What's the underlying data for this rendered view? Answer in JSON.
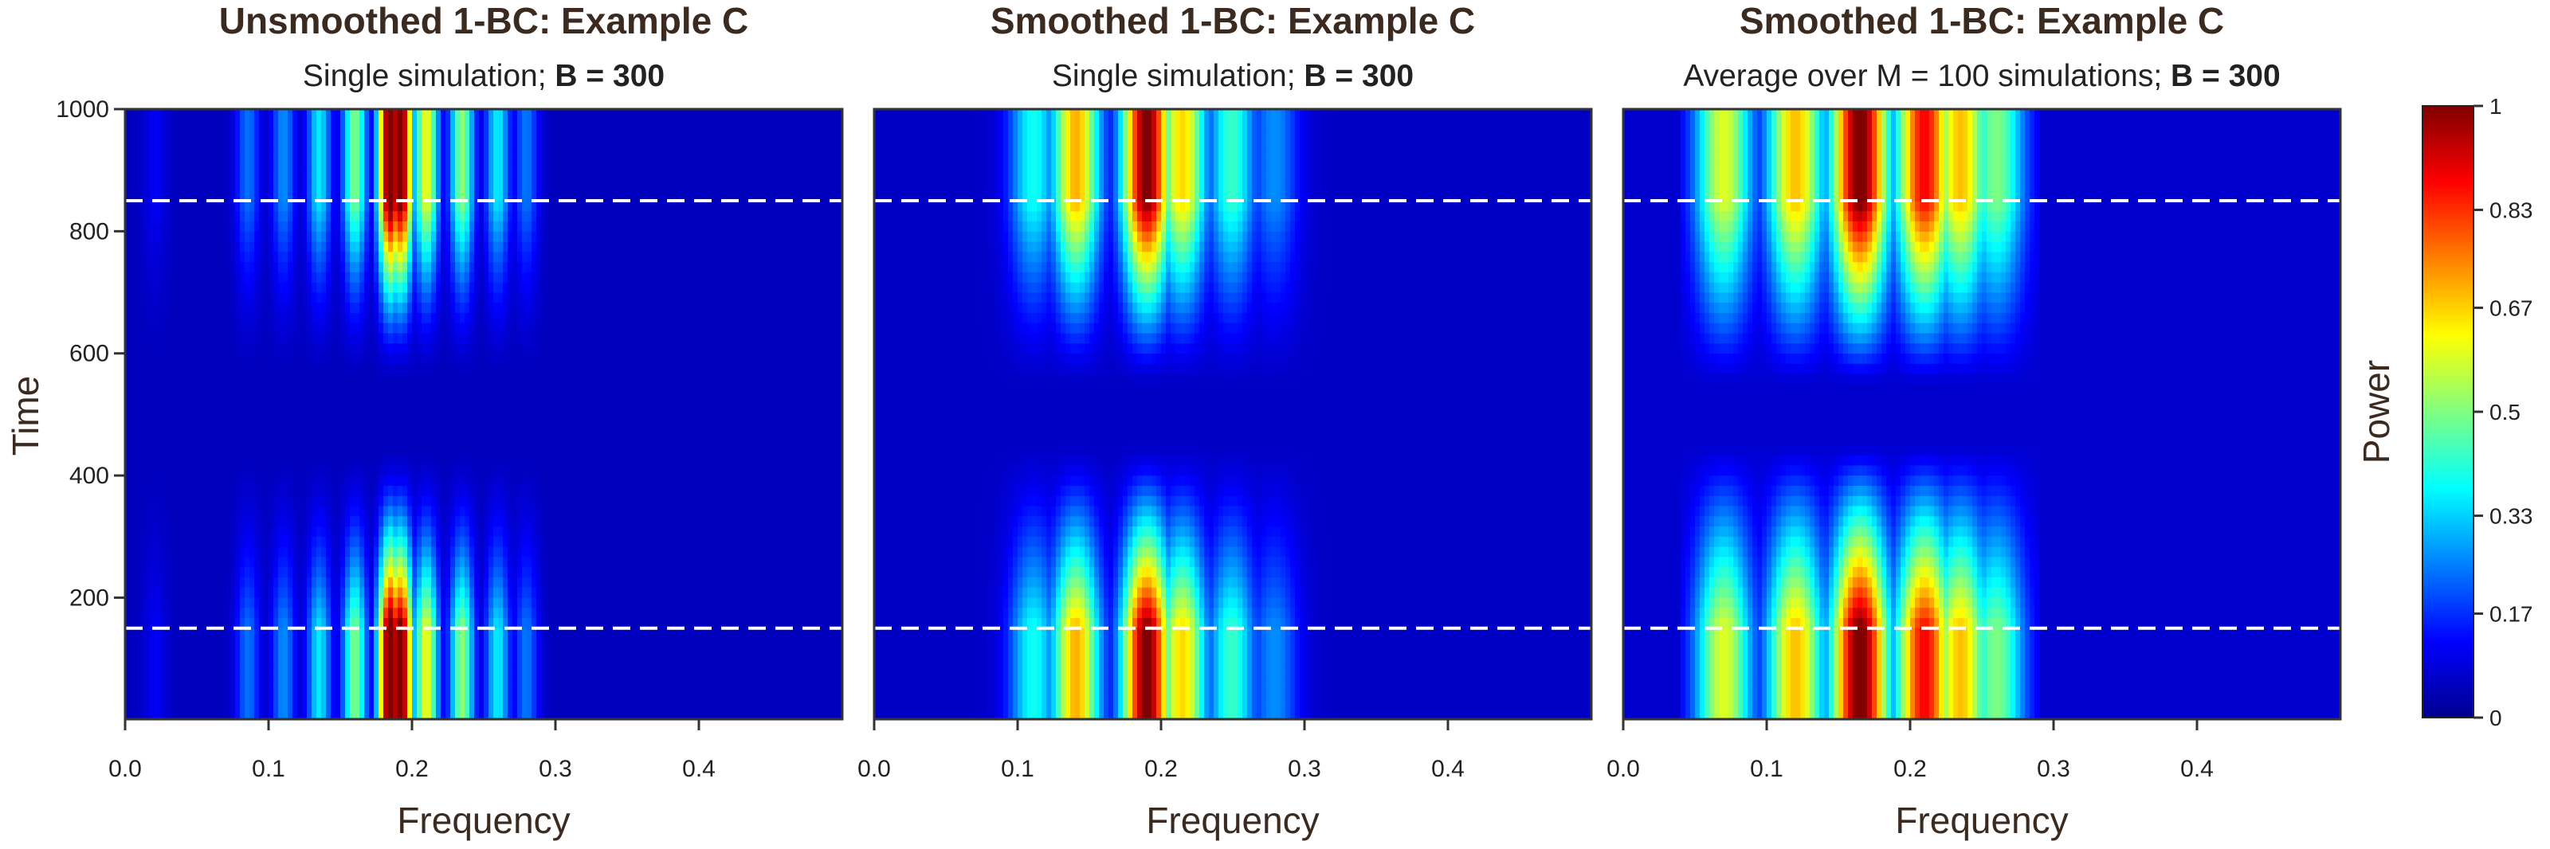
{
  "chart_data": [
    {
      "type": "heatmap",
      "title": "Unsmoothed 1-BC: Example C",
      "subtitle_plain": "Single simulation; ",
      "subtitle_bold": "B = 300",
      "xlabel": "Frequency",
      "ylabel": "Time",
      "xlim": [
        0,
        0.5
      ],
      "ylim": [
        1,
        1000
      ],
      "xticks": [
        "0.0",
        "0.1",
        "0.2",
        "0.3",
        "0.4"
      ],
      "xtick_values": [
        0,
        0.1,
        0.2,
        0.3,
        0.4
      ],
      "yticks": [
        "200",
        "400",
        "600",
        "800",
        "1000"
      ],
      "ytick_values": [
        200,
        400,
        600,
        800,
        1000
      ],
      "reference_lines_time": [
        150,
        850
      ],
      "peak_frequency": 0.19,
      "smoothed": false
    },
    {
      "type": "heatmap",
      "title": "Smoothed 1-BC: Example C",
      "subtitle_plain": "Single simulation; ",
      "subtitle_bold": "B = 300",
      "xlabel": "Frequency",
      "ylabel": "",
      "xlim": [
        0,
        0.5
      ],
      "ylim": [
        1,
        1000
      ],
      "xticks": [
        "0.0",
        "0.1",
        "0.2",
        "0.3",
        "0.4"
      ],
      "xtick_values": [
        0,
        0.1,
        0.2,
        0.3,
        0.4
      ],
      "reference_lines_time": [
        150,
        850
      ],
      "peak_frequency": 0.19,
      "smoothed": true
    },
    {
      "type": "heatmap",
      "title": "Smoothed 1-BC: Example C",
      "subtitle_plain": "Average over M = 100 simulations; ",
      "subtitle_bold": "B = 300",
      "xlabel": "Frequency",
      "ylabel": "",
      "xlim": [
        0,
        0.5
      ],
      "ylim": [
        1,
        1000
      ],
      "xticks": [
        "0.0",
        "0.1",
        "0.2",
        "0.3",
        "0.4"
      ],
      "xtick_values": [
        0,
        0.1,
        0.2,
        0.3,
        0.4
      ],
      "reference_lines_time": [
        150,
        850
      ],
      "peak_frequency": 0.17,
      "smoothed": true
    }
  ],
  "colorbar": {
    "label": "Power",
    "ticks": [
      "0",
      "0.17",
      "0.33",
      "0.5",
      "0.67",
      "0.83",
      "1"
    ],
    "tick_values": [
      0,
      0.17,
      0.33,
      0.5,
      0.67,
      0.83,
      1
    ],
    "colormap": "jet",
    "range": [
      0,
      1
    ]
  },
  "colors": {
    "low": "#00008f",
    "high": "#800000",
    "reference_line": "#ffffff"
  }
}
